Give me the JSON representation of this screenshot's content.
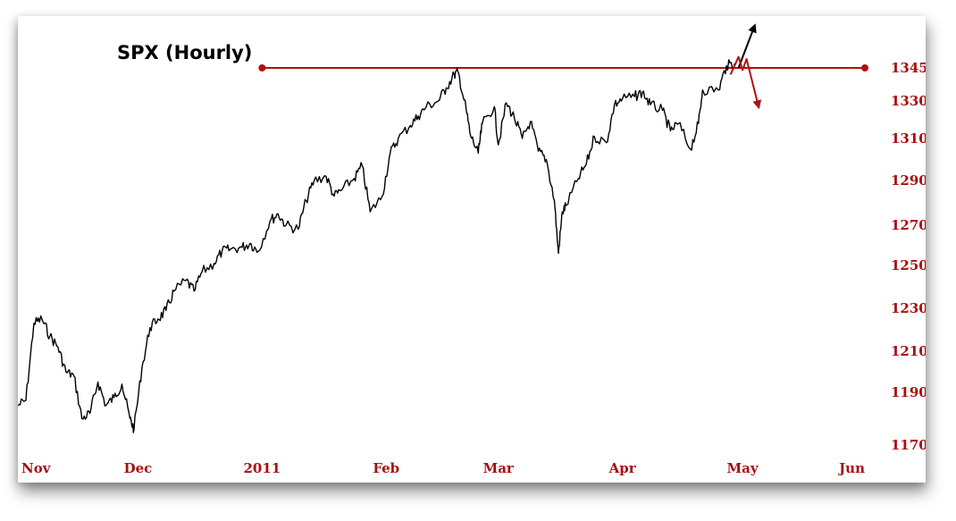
{
  "chart_data": {
    "type": "line",
    "title": "SPX (Hourly)",
    "xlabel": "",
    "ylabel": "",
    "x_range": [
      "2010-11-01",
      "2011-06-01"
    ],
    "x_ticks": [
      {
        "label": "Nov",
        "date": "2010-11-01"
      },
      {
        "label": "Dec",
        "date": "2010-12-01"
      },
      {
        "label": "2011",
        "date": "2011-01-01"
      },
      {
        "label": "Feb",
        "date": "2011-02-01"
      },
      {
        "label": "Mar",
        "date": "2011-03-01"
      },
      {
        "label": "Apr",
        "date": "2011-04-01"
      },
      {
        "label": "May",
        "date": "2011-05-01"
      },
      {
        "label": "Jun",
        "date": "2011-06-01"
      }
    ],
    "y_ticks": [
      1170,
      1190,
      1210,
      1230,
      1250,
      1270,
      1290,
      1310,
      1330,
      1345
    ],
    "ylim": [
      1165,
      1360
    ],
    "y_axis_side": "right",
    "grid": false,
    "series": [
      {
        "color": "#000000",
        "points": [
          [
            "2010-11-01",
            1185
          ],
          [
            "2010-11-03",
            1187
          ],
          [
            "2010-11-05",
            1223
          ],
          [
            "2010-11-07",
            1225
          ],
          [
            "2010-11-09",
            1217
          ],
          [
            "2010-11-11",
            1212
          ],
          [
            "2010-11-13",
            1200
          ],
          [
            "2010-11-15",
            1198
          ],
          [
            "2010-11-17",
            1180
          ],
          [
            "2010-11-19",
            1182
          ],
          [
            "2010-11-21",
            1195
          ],
          [
            "2010-11-23",
            1185
          ],
          [
            "2010-11-25",
            1188
          ],
          [
            "2010-11-27",
            1194
          ],
          [
            "2010-11-29",
            1180
          ],
          [
            "2010-11-30",
            1176
          ],
          [
            "2010-12-02",
            1202
          ],
          [
            "2010-12-04",
            1221
          ],
          [
            "2010-12-06",
            1225
          ],
          [
            "2010-12-08",
            1229
          ],
          [
            "2010-12-10",
            1238
          ],
          [
            "2010-12-13",
            1243
          ],
          [
            "2010-12-15",
            1238
          ],
          [
            "2010-12-17",
            1247
          ],
          [
            "2010-12-20",
            1251
          ],
          [
            "2010-12-22",
            1257
          ],
          [
            "2010-12-24",
            1258
          ],
          [
            "2010-12-27",
            1259
          ],
          [
            "2010-12-29",
            1261
          ],
          [
            "2010-12-31",
            1257
          ],
          [
            "2011-01-03",
            1272
          ],
          [
            "2011-01-05",
            1275
          ],
          [
            "2011-01-07",
            1270
          ],
          [
            "2011-01-10",
            1268
          ],
          [
            "2011-01-12",
            1281
          ],
          [
            "2011-01-14",
            1290
          ],
          [
            "2011-01-17",
            1292
          ],
          [
            "2011-01-19",
            1283
          ],
          [
            "2011-01-21",
            1286
          ],
          [
            "2011-01-24",
            1291
          ],
          [
            "2011-01-26",
            1297
          ],
          [
            "2011-01-28",
            1276
          ],
          [
            "2011-01-31",
            1283
          ],
          [
            "2011-02-02",
            1303
          ],
          [
            "2011-02-04",
            1310
          ],
          [
            "2011-02-07",
            1317
          ],
          [
            "2011-02-09",
            1322
          ],
          [
            "2011-02-11",
            1327
          ],
          [
            "2011-02-14",
            1330
          ],
          [
            "2011-02-16",
            1336
          ],
          [
            "2011-02-18",
            1342
          ],
          [
            "2011-02-19",
            1343
          ],
          [
            "2011-02-21",
            1325
          ],
          [
            "2011-02-22",
            1312
          ],
          [
            "2011-02-24",
            1303
          ],
          [
            "2011-02-25",
            1318
          ],
          [
            "2011-02-28",
            1327
          ],
          [
            "2011-03-01",
            1307
          ],
          [
            "2011-03-03",
            1329
          ],
          [
            "2011-03-05",
            1321
          ],
          [
            "2011-03-07",
            1310
          ],
          [
            "2011-03-09",
            1319
          ],
          [
            "2011-03-11",
            1304
          ],
          [
            "2011-03-13",
            1300
          ],
          [
            "2011-03-15",
            1281
          ],
          [
            "2011-03-16",
            1256
          ],
          [
            "2011-03-17",
            1276
          ],
          [
            "2011-03-18",
            1279
          ],
          [
            "2011-03-21",
            1291
          ],
          [
            "2011-03-23",
            1298
          ],
          [
            "2011-03-25",
            1311
          ],
          [
            "2011-03-28",
            1308
          ],
          [
            "2011-03-30",
            1328
          ],
          [
            "2011-04-01",
            1331
          ],
          [
            "2011-04-04",
            1332
          ],
          [
            "2011-04-06",
            1334
          ],
          [
            "2011-04-08",
            1328
          ],
          [
            "2011-04-11",
            1325
          ],
          [
            "2011-04-13",
            1314
          ],
          [
            "2011-04-15",
            1318
          ],
          [
            "2011-04-18",
            1305
          ],
          [
            "2011-04-20",
            1318
          ],
          [
            "2011-04-21",
            1335
          ],
          [
            "2011-04-25",
            1335
          ],
          [
            "2011-04-27",
            1346
          ],
          [
            "2011-04-29",
            1347
          ]
        ]
      }
    ],
    "annotations": [
      {
        "type": "horizontal-line",
        "y": 1345,
        "x_start": "2011-01-01",
        "x_end": "2011-06-01",
        "color": "#b01010",
        "endpoint_markers": "circles"
      },
      {
        "type": "projected-path-up",
        "color": "#000000",
        "points": [
          [
            "2011-04-30",
            1345
          ],
          [
            "2011-05-04",
            1364
          ]
        ]
      },
      {
        "type": "projected-path-down",
        "color": "#b01010",
        "points": [
          [
            "2011-04-28",
            1342
          ],
          [
            "2011-04-30",
            1350
          ],
          [
            "2011-05-01",
            1344
          ],
          [
            "2011-05-02",
            1349
          ],
          [
            "2011-05-05",
            1327
          ]
        ]
      }
    ]
  }
}
